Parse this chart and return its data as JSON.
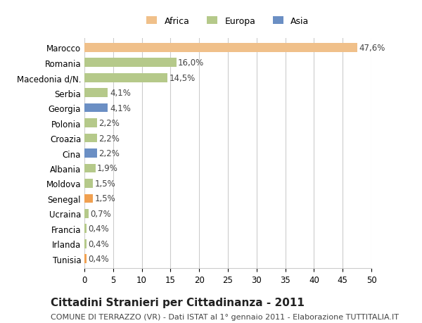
{
  "categories": [
    "Marocco",
    "Romania",
    "Macedonia d/N.",
    "Serbia",
    "Georgia",
    "Polonia",
    "Croazia",
    "Cina",
    "Albania",
    "Moldova",
    "Senegal",
    "Ucraina",
    "Francia",
    "Irlanda",
    "Tunisia"
  ],
  "values": [
    47.6,
    16.0,
    14.5,
    4.1,
    4.1,
    2.2,
    2.2,
    2.2,
    1.9,
    1.5,
    1.5,
    0.7,
    0.4,
    0.4,
    0.4
  ],
  "labels": [
    "47,6%",
    "16,0%",
    "14,5%",
    "4,1%",
    "4,1%",
    "2,2%",
    "2,2%",
    "2,2%",
    "1,9%",
    "1,5%",
    "1,5%",
    "0,7%",
    "0,4%",
    "0,4%",
    "0,4%"
  ],
  "colors": [
    "#f0c08a",
    "#b5c98a",
    "#b5c98a",
    "#b5c98a",
    "#6b8fc4",
    "#b5c98a",
    "#b5c98a",
    "#6b8fc4",
    "#b5c98a",
    "#b5c98a",
    "#f0a050",
    "#b5c98a",
    "#b5c98a",
    "#b5c98a",
    "#f0a050"
  ],
  "legend_labels": [
    "Africa",
    "Europa",
    "Asia"
  ],
  "legend_colors": [
    "#f0c08a",
    "#b5c98a",
    "#6b8fc4"
  ],
  "title": "Cittadini Stranieri per Cittadinanza - 2011",
  "subtitle": "COMUNE DI TERRAZZO (VR) - Dati ISTAT al 1° gennaio 2011 - Elaborazione TUTTITALIA.IT",
  "xlim": [
    0,
    50
  ],
  "xticks": [
    0,
    5,
    10,
    15,
    20,
    25,
    30,
    35,
    40,
    45,
    50
  ],
  "background_color": "#ffffff",
  "grid_color": "#cccccc",
  "bar_height": 0.6,
  "label_fontsize": 8.5,
  "title_fontsize": 11,
  "subtitle_fontsize": 8
}
